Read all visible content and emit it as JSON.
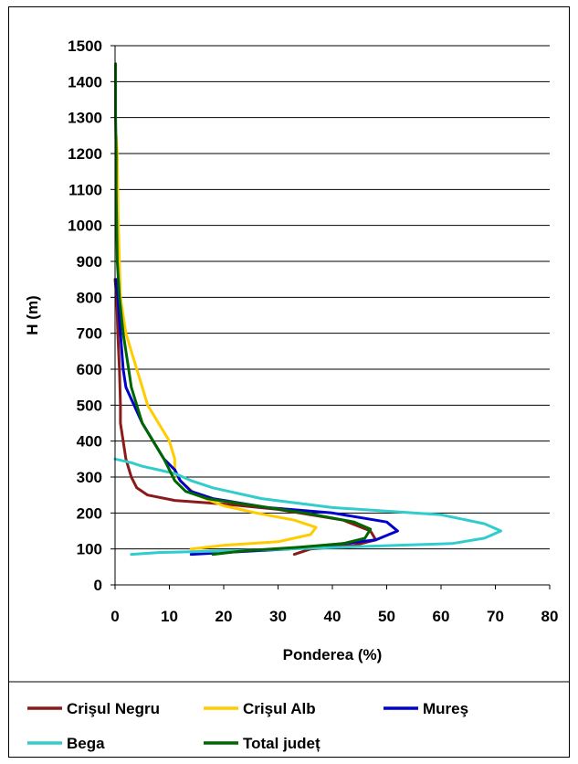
{
  "chart_data": {
    "type": "line",
    "title": "",
    "xlabel": "Ponderea (%)",
    "ylabel": "H (m)",
    "xlim": [
      0,
      80
    ],
    "ylim": [
      0,
      1500
    ],
    "x_ticks": [
      0,
      10,
      20,
      30,
      40,
      50,
      60,
      70,
      80
    ],
    "y_ticks": [
      0,
      100,
      200,
      300,
      400,
      500,
      600,
      700,
      800,
      900,
      1000,
      1100,
      1200,
      1300,
      1400,
      1500
    ],
    "grid": "horizontal",
    "legend_position": "bottom",
    "series": [
      {
        "name": "Crişul Negru",
        "color": "#8B1A1A",
        "points": [
          [
            33,
            85
          ],
          [
            36,
            100
          ],
          [
            44,
            110
          ],
          [
            48,
            125
          ],
          [
            47,
            150
          ],
          [
            42,
            180
          ],
          [
            30,
            210
          ],
          [
            20,
            225
          ],
          [
            11,
            235
          ],
          [
            6,
            250
          ],
          [
            4,
            270
          ],
          [
            3,
            300
          ],
          [
            2,
            350
          ],
          [
            1.5,
            400
          ],
          [
            1,
            450
          ],
          [
            1,
            500
          ],
          [
            0.8,
            600
          ],
          [
            0.5,
            700
          ],
          [
            0.3,
            800
          ],
          [
            0,
            850
          ]
        ]
      },
      {
        "name": "Crişul Alb",
        "color": "#FFCC00",
        "points": [
          [
            14,
            100
          ],
          [
            20,
            110
          ],
          [
            30,
            120
          ],
          [
            36,
            140
          ],
          [
            37,
            160
          ],
          [
            33,
            180
          ],
          [
            26,
            200
          ],
          [
            20,
            220
          ],
          [
            15,
            250
          ],
          [
            12,
            290
          ],
          [
            11,
            310
          ],
          [
            11,
            350
          ],
          [
            10,
            400
          ],
          [
            8,
            450
          ],
          [
            6,
            500
          ],
          [
            5,
            550
          ],
          [
            4,
            600
          ],
          [
            3,
            650
          ],
          [
            2,
            700
          ],
          [
            1.5,
            750
          ],
          [
            1,
            800
          ],
          [
            0.8,
            900
          ],
          [
            0.6,
            1000
          ],
          [
            0.5,
            1100
          ],
          [
            0.4,
            1200
          ],
          [
            0.2,
            1250
          ]
        ]
      },
      {
        "name": "Mureş",
        "color": "#0000CC",
        "points": [
          [
            14,
            85
          ],
          [
            20,
            90
          ],
          [
            32,
            100
          ],
          [
            42,
            115
          ],
          [
            48,
            125
          ],
          [
            52,
            150
          ],
          [
            50,
            175
          ],
          [
            40,
            200
          ],
          [
            28,
            215
          ],
          [
            18,
            240
          ],
          [
            14,
            260
          ],
          [
            12,
            290
          ],
          [
            11,
            320
          ],
          [
            9,
            350
          ],
          [
            7,
            400
          ],
          [
            5,
            450
          ],
          [
            3.5,
            500
          ],
          [
            2,
            550
          ],
          [
            1.5,
            600
          ],
          [
            1,
            700
          ],
          [
            0.5,
            800
          ],
          [
            0.3,
            850
          ]
        ]
      },
      {
        "name": "Bega",
        "color": "#33CCCC",
        "points": [
          [
            3,
            85
          ],
          [
            8,
            90
          ],
          [
            22,
            95
          ],
          [
            42,
            105
          ],
          [
            62,
            115
          ],
          [
            68,
            130
          ],
          [
            71,
            150
          ],
          [
            68,
            170
          ],
          [
            60,
            195
          ],
          [
            40,
            215
          ],
          [
            27,
            240
          ],
          [
            18,
            270
          ],
          [
            14,
            290
          ],
          [
            11,
            310
          ],
          [
            8,
            320
          ],
          [
            5,
            330
          ],
          [
            3,
            340
          ],
          [
            0,
            350
          ]
        ]
      },
      {
        "name": "Total județ",
        "color": "#006600",
        "points": [
          [
            18,
            85
          ],
          [
            24,
            95
          ],
          [
            34,
            105
          ],
          [
            42,
            115
          ],
          [
            46,
            130
          ],
          [
            47,
            155
          ],
          [
            44,
            175
          ],
          [
            35,
            200
          ],
          [
            26,
            220
          ],
          [
            17,
            240
          ],
          [
            13,
            260
          ],
          [
            11,
            290
          ],
          [
            10,
            320
          ],
          [
            9,
            350
          ],
          [
            7,
            400
          ],
          [
            5,
            450
          ],
          [
            4,
            500
          ],
          [
            3,
            550
          ],
          [
            2.5,
            600
          ],
          [
            1.5,
            700
          ],
          [
            0.8,
            800
          ],
          [
            0.4,
            900
          ],
          [
            0.3,
            1000
          ],
          [
            0.2,
            1100
          ],
          [
            0.2,
            1200
          ],
          [
            0.1,
            1300
          ],
          [
            0.1,
            1400
          ],
          [
            0.1,
            1450
          ]
        ]
      }
    ]
  }
}
